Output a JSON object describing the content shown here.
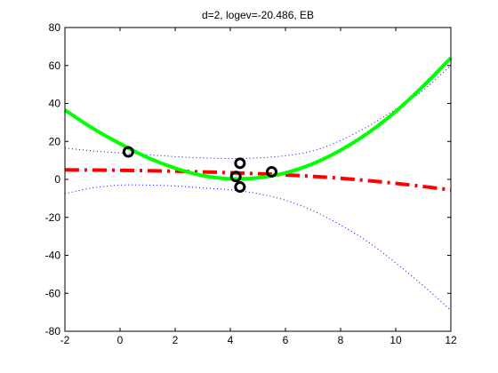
{
  "chart_data": {
    "type": "line",
    "title": "d=2, logev=-20.486, EB",
    "xlabel": "",
    "ylabel": "",
    "xlim": [
      -2,
      12
    ],
    "ylim": [
      -80,
      80
    ],
    "xticks": [
      "-2",
      "0",
      "2",
      "4",
      "6",
      "8",
      "10",
      "12"
    ],
    "yticks": [
      "-80",
      "-60",
      "-40",
      "-20",
      "0",
      "20",
      "40",
      "60",
      "80"
    ],
    "grid": false,
    "legend": "none",
    "series": [
      {
        "style": "solid",
        "color": "#00ff00",
        "x": [
          -2,
          -1,
          0,
          1,
          2,
          3,
          4,
          5,
          6,
          7,
          8,
          9,
          10,
          11,
          12
        ],
        "y": [
          36.5,
          27.0,
          18.8,
          11.5,
          5.9,
          2.0,
          0.3,
          0.8,
          3.4,
          8.3,
          15.4,
          24.5,
          35.8,
          49.2,
          64.0
        ]
      },
      {
        "style": "dashdot",
        "color": "#ff0000",
        "x": [
          -2,
          0,
          2,
          4,
          6,
          8,
          10,
          12
        ],
        "y": [
          5.0,
          4.8,
          4.3,
          3.5,
          2.4,
          0.6,
          -2.1,
          -5.5
        ]
      },
      {
        "style": "dotted",
        "color": "#0000ff",
        "x": [
          -2,
          -1,
          0,
          1,
          2,
          3,
          4,
          5,
          6,
          7,
          8,
          9,
          10,
          11,
          12
        ],
        "y": [
          16.5,
          15.0,
          14.0,
          13.0,
          12.0,
          11.3,
          11.0,
          11.3,
          12.5,
          15.0,
          20.5,
          28.0,
          37.0,
          47.0,
          60.0
        ]
      },
      {
        "style": "dotted",
        "color": "#0000ff",
        "x": [
          -2,
          -1,
          0,
          1,
          2,
          3,
          4,
          5,
          6,
          7,
          8,
          9,
          10,
          11,
          12
        ],
        "y": [
          -7.5,
          -4.5,
          -3.0,
          -3.0,
          -3.5,
          -4.5,
          -5.5,
          -7.5,
          -11.0,
          -16.5,
          -24.0,
          -33.0,
          -44.0,
          -56.0,
          -69.0
        ]
      }
    ],
    "points": {
      "color": "#000000",
      "x": [
        0.3,
        4.2,
        4.35,
        4.35,
        5.5
      ],
      "y": [
        14.5,
        1.5,
        8.5,
        -4.0,
        4.0
      ]
    }
  }
}
